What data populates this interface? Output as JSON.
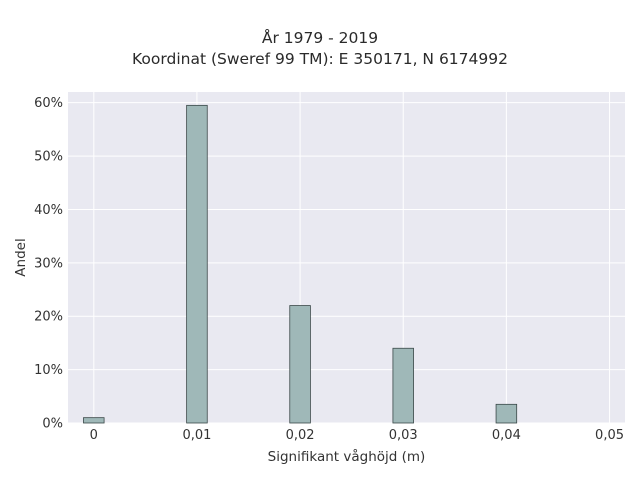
{
  "chart_data": {
    "type": "bar",
    "title": "År 1979 - 2019",
    "subtitle": "Koordinat (Sweref 99 TM): E 350171, N 6174992",
    "xlabel": "Signifikant våghöjd (m)",
    "ylabel": "Andel",
    "x": [
      0,
      0.01,
      0.02,
      0.03,
      0.04
    ],
    "values": [
      1.0,
      59.5,
      22.0,
      14.0,
      3.5
    ],
    "value_unit": "%",
    "xlim": [
      -0.0025,
      0.0515
    ],
    "ylim": [
      0,
      62
    ],
    "x_ticks": [
      0,
      0.01,
      0.02,
      0.03,
      0.04,
      0.05
    ],
    "x_tick_labels": [
      "0",
      "0,01",
      "0,02",
      "0,03",
      "0,04",
      "0,05"
    ],
    "y_ticks": [
      0,
      10,
      20,
      30,
      40,
      50,
      60
    ],
    "y_tick_labels": [
      "0%",
      "10%",
      "20%",
      "30%",
      "40%",
      "50%",
      "60%"
    ],
    "grid": true,
    "colors": {
      "bar_fill": "#9fb8b8",
      "bar_stroke": "#3a4848",
      "plot_bg": "#e9e9f1",
      "grid": "#ffffff"
    }
  }
}
